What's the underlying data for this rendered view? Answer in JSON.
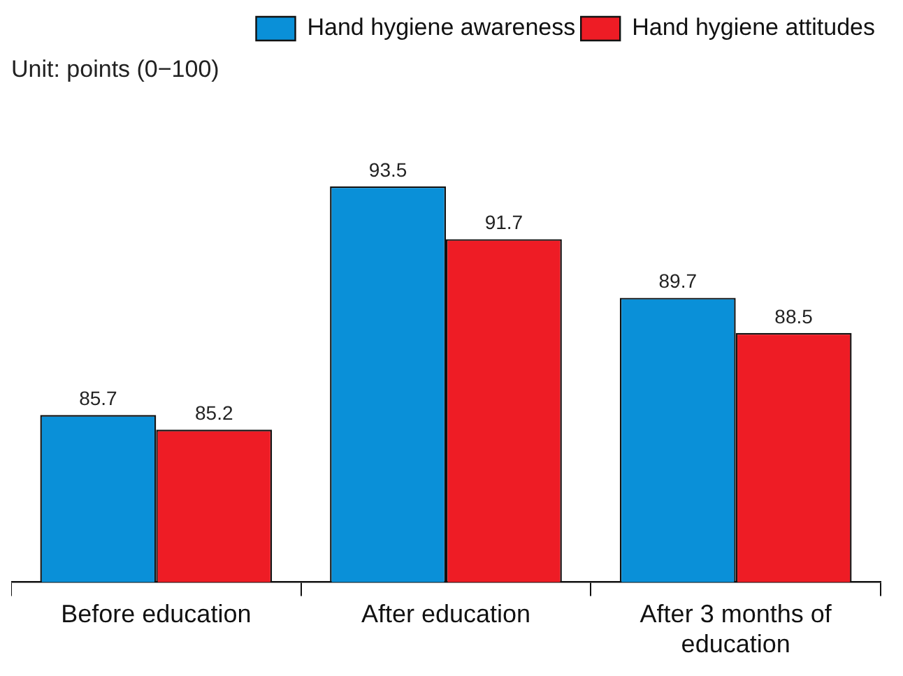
{
  "chart_data": {
    "type": "bar",
    "categories": [
      "Before education",
      "After education",
      "After 3 months of education"
    ],
    "series": [
      {
        "name": "Hand hygiene awareness",
        "color": "#0a90d8",
        "values": [
          85.7,
          93.5,
          89.7
        ]
      },
      {
        "name": "Hand hygiene attitudes",
        "color": "#ee1c25",
        "values": [
          85.2,
          91.7,
          88.5
        ]
      }
    ],
    "tick_labels": "x",
    "data_labels": true,
    "grid": false,
    "legend": "top right",
    "annotations": [
      "Unit: points (0−100)"
    ]
  }
}
